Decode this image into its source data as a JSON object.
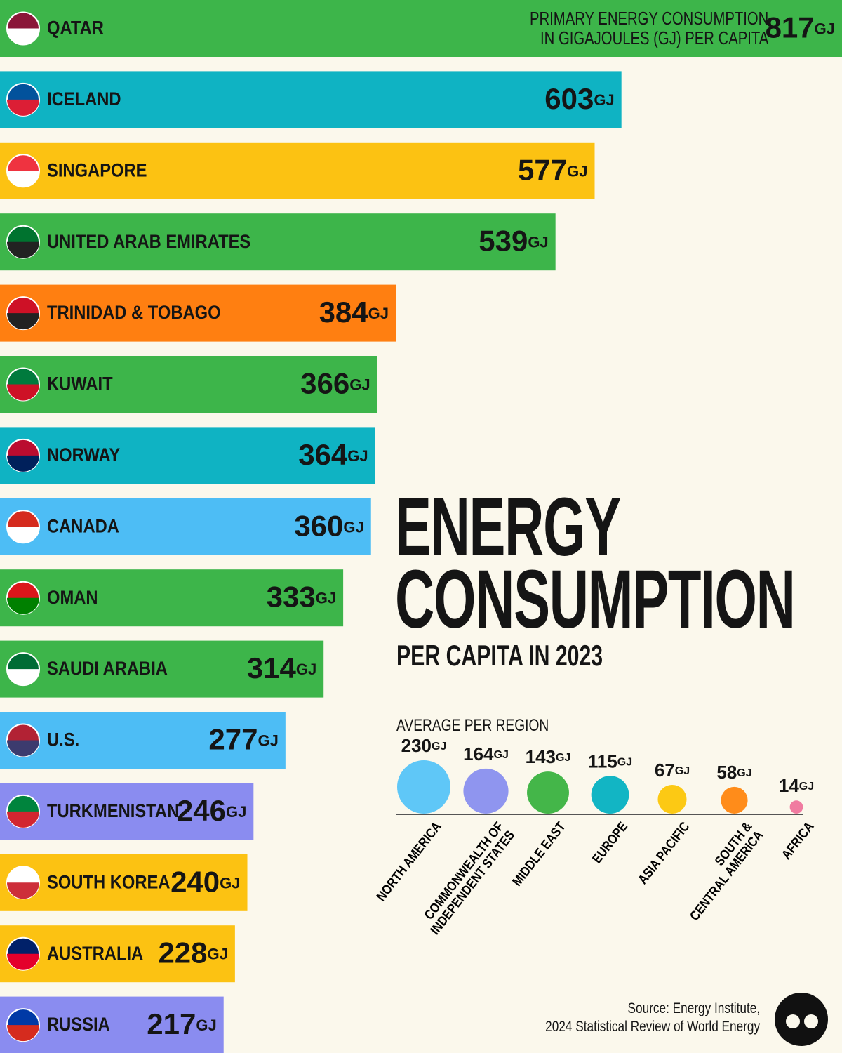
{
  "chart_data": [
    {
      "type": "bar",
      "orientation": "horizontal",
      "title": "ENERGY\nCONSUMPTION",
      "subtitle": "PER CAPITA IN 2023",
      "annotation": "PRIMARY ENERGY CONSUMPTION\nIN GIGAJOULES (GJ) PER CAPITA",
      "source": "Source: Energy Institute,\n2024 Statistical Review of World Energy",
      "unit": "GJ",
      "categories": [
        "QATAR",
        "ICELAND",
        "SINGAPORE",
        "UNITED ARAB EMIRATES",
        "TRINIDAD & TOBAGO",
        "KUWAIT",
        "NORWAY",
        "CANADA",
        "OMAN",
        "SAUDI ARABIA",
        "U.S.",
        "TURKMENISTAN",
        "SOUTH KOREA",
        "AUSTRALIA",
        "RUSSIA"
      ],
      "values": [
        817,
        603,
        577,
        539,
        384,
        366,
        364,
        360,
        333,
        314,
        277,
        246,
        240,
        228,
        217
      ],
      "colors": [
        "#3db54a",
        "#0fb3c3",
        "#fcc212",
        "#3db54a",
        "#ff7f11",
        "#3db54a",
        "#0fb3c3",
        "#4dbdf5",
        "#3db54a",
        "#3db54a",
        "#4dbdf5",
        "#8a8cf0",
        "#fcc212",
        "#fcc212",
        "#8a8cf0"
      ]
    },
    {
      "type": "bubble",
      "title": "AVERAGE PER REGION",
      "unit": "GJ",
      "categories": [
        "NORTH AMERICA",
        "COMMONWEALTH OF\nINDEPENDENT STATES",
        "MIDDLE EAST",
        "EUROPE",
        "ASIA PACIFIC",
        "SOUTH &\nCENTRAL AMERICA",
        "AFRICA"
      ],
      "values": [
        230,
        164,
        143,
        115,
        67,
        58,
        14
      ],
      "colors": [
        "#5fc7f7",
        "#8f95ef",
        "#44b649",
        "#12b5c4",
        "#fcc914",
        "#ff8c1a",
        "#f07ba0"
      ]
    }
  ]
}
